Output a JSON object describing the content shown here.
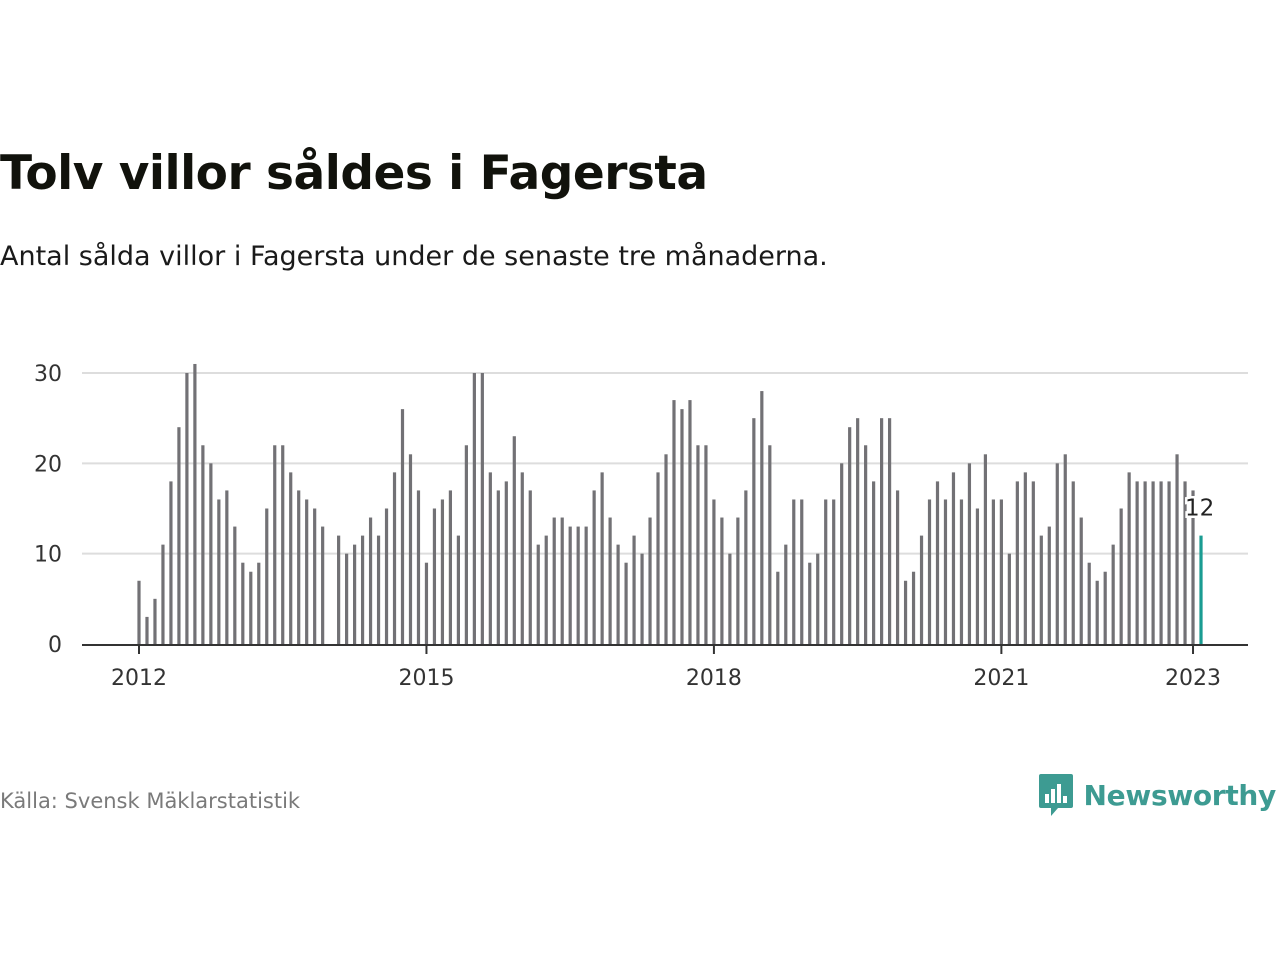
{
  "header": {
    "title": "Tolv villor såldes i Fagersta",
    "subtitle": "Antal sålda villor i Fagersta under de senaste tre månaderna."
  },
  "footer": {
    "source": "Källa: Svensk Mäklarstatistik",
    "brand": "Newsworthy",
    "brand_icon": "bar-chart-speech-bubble-icon"
  },
  "colors": {
    "bar": "#727175",
    "highlight": "#1a9c92",
    "grid": "#dddddd",
    "axis": "#333333",
    "brand": "#3d9b92"
  },
  "chart_data": {
    "type": "bar",
    "title": "Tolv villor såldes i Fagersta",
    "subtitle": "Antal sålda villor i Fagersta under de senaste tre månaderna.",
    "xlabel": "",
    "ylabel": "",
    "x_start": "2012-01",
    "frequency": "monthly",
    "x_ticks": [
      "2012",
      "2015",
      "2018",
      "2021",
      "2023"
    ],
    "y_ticks": [
      0,
      10,
      20,
      30
    ],
    "ylim": [
      0,
      31
    ],
    "grid": true,
    "values": [
      7,
      3,
      5,
      11,
      18,
      24,
      30,
      31,
      22,
      20,
      16,
      17,
      13,
      9,
      8,
      9,
      15,
      22,
      22,
      19,
      17,
      16,
      15,
      13,
      null,
      12,
      10,
      11,
      12,
      14,
      12,
      15,
      19,
      26,
      21,
      17,
      9,
      15,
      16,
      17,
      12,
      22,
      30,
      30,
      19,
      17,
      18,
      23,
      19,
      17,
      11,
      12,
      14,
      14,
      13,
      13,
      13,
      17,
      19,
      14,
      11,
      9,
      12,
      10,
      14,
      19,
      21,
      27,
      26,
      27,
      22,
      22,
      16,
      14,
      10,
      14,
      17,
      25,
      28,
      22,
      8,
      11,
      16,
      16,
      9,
      10,
      16,
      16,
      20,
      24,
      25,
      22,
      18,
      25,
      25,
      17,
      7,
      8,
      12,
      16,
      18,
      16,
      19,
      16,
      20,
      15,
      21,
      16,
      16,
      10,
      18,
      19,
      18,
      12,
      13,
      20,
      21,
      18,
      14,
      9,
      7,
      8,
      11,
      15,
      19,
      18,
      18,
      18,
      18,
      18,
      21,
      18,
      17,
      12
    ],
    "highlight": {
      "label": "12",
      "value": 12
    }
  }
}
